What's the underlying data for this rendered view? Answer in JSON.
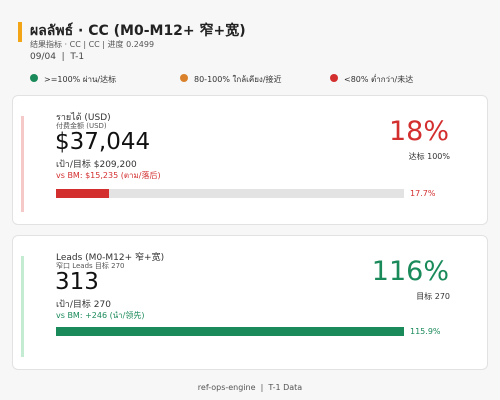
{
  "header": {
    "title": "ผลลัพธ์ · CC (M0-M12+ 窄+宽)",
    "subtitle": "结果指标 · CC | CC | 进度 0.2499",
    "date": "09/04",
    "period": "T-1"
  },
  "legend": [
    {
      "label": ">=100% ผ่าน/达标",
      "color": "#1a8a5a"
    },
    {
      "label": "80-100% ใกล้เคียง/接近",
      "color": "#d9822b"
    },
    {
      "label": "<80% ต่ำกว่า/未达",
      "color": "#d32f2f"
    }
  ],
  "cards": [
    {
      "name": "รายได้ (USD)",
      "subname": "付费金额 (USD)",
      "value": "$37,044",
      "target": "เป้า/目标 $209,200",
      "benchmark": "vs BM: $15,235 (ตาม/落后)",
      "percent": "18%",
      "percent_note": "达标 100%",
      "progress": {
        "value": 17.7,
        "label": "17.7%"
      },
      "color": "#d32f2f",
      "accent": "#f6c9c9"
    },
    {
      "name": "Leads (M0-M12+ 窄+宽)",
      "subname": "窄口 Leads 目标 270",
      "value": "313",
      "target": "เป้า/目标 270",
      "benchmark": "vs BM: +246 (นำ/领先)",
      "percent": "116%",
      "percent_note": "目标 270",
      "progress": {
        "value": 115.9,
        "label": "115.9%"
      },
      "color": "#1a8a5a",
      "accent": "#c3ecd3"
    }
  ],
  "footer": {
    "source": "ref-ops-engine",
    "note": "T-1 Data"
  }
}
